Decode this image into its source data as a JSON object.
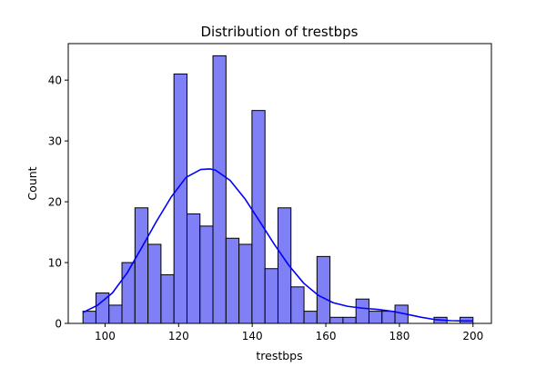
{
  "chart_data": {
    "type": "bar",
    "title": "Distribution of trestbps",
    "xlabel": "trestbps",
    "ylabel": "Count",
    "xlim": [
      90,
      205
    ],
    "ylim": [
      0,
      46
    ],
    "x_ticks": [
      100,
      120,
      140,
      160,
      180,
      200
    ],
    "y_ticks": [
      0,
      10,
      20,
      30,
      40
    ],
    "bin_edges": [
      94,
      97.53,
      101.07,
      104.6,
      108.13,
      111.67,
      115.2,
      118.73,
      122.27,
      125.8,
      129.33,
      132.87,
      136.4,
      139.93,
      143.47,
      147.0,
      150.53,
      154.07,
      157.6,
      161.13,
      164.67,
      168.2,
      171.73,
      175.27,
      178.8,
      182.33,
      185.87,
      189.4,
      192.93,
      196.47,
      200
    ],
    "counts": [
      2,
      5,
      3,
      10,
      19,
      13,
      8,
      41,
      18,
      16,
      44,
      14,
      13,
      35,
      9,
      19,
      6,
      2,
      11,
      1,
      1,
      4,
      2,
      2,
      3,
      0,
      0,
      1,
      0,
      1
    ],
    "kde": {
      "x": [
        94,
        98,
        102,
        106,
        110,
        114,
        118,
        122,
        126,
        128.5,
        130,
        134,
        138,
        142,
        146,
        150,
        154,
        158,
        162,
        166,
        170,
        174,
        178,
        182,
        186,
        190,
        194,
        198,
        200
      ],
      "y": [
        1.8,
        3.0,
        5.0,
        8.3,
        12.5,
        16.8,
        20.8,
        24.0,
        25.3,
        25.4,
        25.2,
        23.5,
        20.5,
        16.8,
        13.0,
        9.5,
        6.6,
        4.6,
        3.4,
        2.8,
        2.5,
        2.3,
        2.0,
        1.5,
        1.0,
        0.6,
        0.45,
        0.4,
        0.4
      ]
    },
    "grid": false,
    "legend": "none"
  },
  "colors": {
    "bar_fill": "#7f7ff6",
    "bar_edge": "#000000",
    "kde_line": "#0000ff",
    "axis": "#000000"
  }
}
